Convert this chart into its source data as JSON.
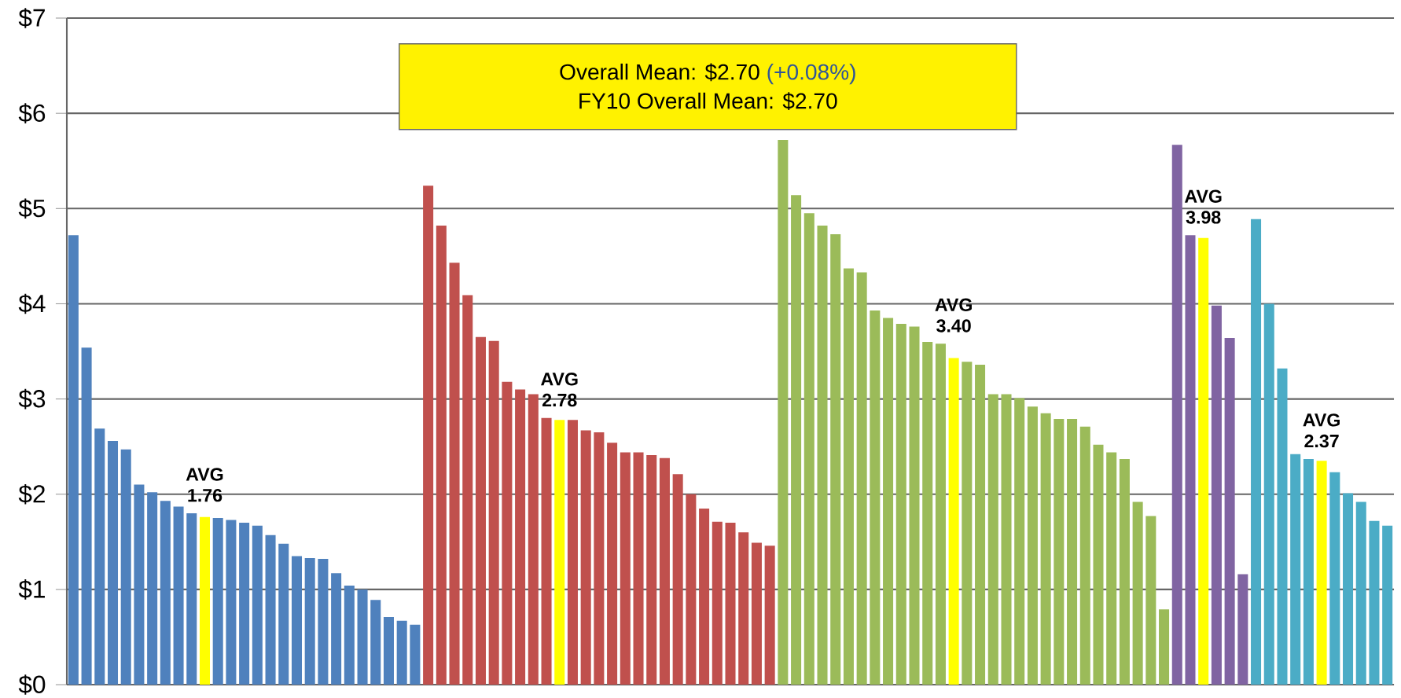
{
  "chart_data": {
    "type": "bar",
    "categories": [
      null,
      null,
      null,
      null,
      null,
      null,
      null,
      null,
      null,
      null,
      null,
      null,
      null,
      null,
      null,
      null,
      null,
      null,
      null,
      null,
      null,
      null,
      null,
      null,
      null,
      null,
      null,
      null,
      null,
      null,
      null,
      null,
      null,
      null,
      null,
      null,
      null,
      null,
      null,
      null,
      null,
      null,
      null,
      null,
      null,
      null,
      null,
      null,
      null,
      null,
      null,
      null,
      null,
      null,
      null,
      null,
      null,
      null,
      null,
      null,
      null,
      null,
      null,
      null,
      null,
      null,
      null,
      null,
      null,
      null,
      null,
      null,
      null,
      null,
      null,
      null,
      null,
      null,
      null,
      null,
      null,
      null,
      null,
      null,
      null,
      null,
      null,
      null,
      null,
      null,
      null,
      null,
      null,
      null,
      null,
      null,
      null,
      null,
      null,
      null,
      null
    ],
    "values": [
      4.72,
      3.54,
      2.69,
      2.56,
      2.47,
      2.1,
      2.02,
      1.93,
      1.87,
      1.8,
      1.76,
      1.75,
      1.73,
      1.7,
      1.67,
      1.57,
      1.48,
      1.35,
      1.33,
      1.32,
      1.17,
      1.04,
      1.0,
      0.89,
      0.71,
      0.67,
      0.63,
      5.24,
      4.82,
      4.43,
      4.09,
      3.65,
      3.61,
      3.18,
      3.1,
      3.05,
      2.8,
      2.78,
      2.78,
      2.67,
      2.65,
      2.54,
      2.44,
      2.44,
      2.41,
      2.38,
      2.21,
      2.0,
      1.85,
      1.71,
      1.7,
      1.6,
      1.49,
      1.46,
      5.72,
      5.14,
      4.95,
      4.82,
      4.73,
      4.37,
      4.33,
      3.93,
      3.85,
      3.79,
      3.76,
      3.6,
      3.58,
      3.43,
      3.39,
      3.36,
      3.05,
      3.05,
      3.01,
      2.92,
      2.85,
      2.79,
      2.79,
      2.71,
      2.52,
      2.44,
      2.37,
      1.92,
      1.77,
      0.79,
      5.67,
      4.72,
      4.69,
      3.98,
      3.64,
      1.16,
      4.89,
      4.0,
      3.32,
      2.42,
      2.37,
      2.35,
      2.23,
      2.01,
      1.92,
      1.72,
      1.67
    ],
    "colors": [
      "#4f81bd",
      "#4f81bd",
      "#4f81bd",
      "#4f81bd",
      "#4f81bd",
      "#4f81bd",
      "#4f81bd",
      "#4f81bd",
      "#4f81bd",
      "#4f81bd",
      "#ffff00",
      "#4f81bd",
      "#4f81bd",
      "#4f81bd",
      "#4f81bd",
      "#4f81bd",
      "#4f81bd",
      "#4f81bd",
      "#4f81bd",
      "#4f81bd",
      "#4f81bd",
      "#4f81bd",
      "#4f81bd",
      "#4f81bd",
      "#4f81bd",
      "#4f81bd",
      "#4f81bd",
      "#c0504d",
      "#c0504d",
      "#c0504d",
      "#c0504d",
      "#c0504d",
      "#c0504d",
      "#c0504d",
      "#c0504d",
      "#c0504d",
      "#c0504d",
      "#ffff00",
      "#c0504d",
      "#c0504d",
      "#c0504d",
      "#c0504d",
      "#c0504d",
      "#c0504d",
      "#c0504d",
      "#c0504d",
      "#c0504d",
      "#c0504d",
      "#c0504d",
      "#c0504d",
      "#c0504d",
      "#c0504d",
      "#c0504d",
      "#c0504d",
      "#9bbb59",
      "#9bbb59",
      "#9bbb59",
      "#9bbb59",
      "#9bbb59",
      "#9bbb59",
      "#9bbb59",
      "#9bbb59",
      "#9bbb59",
      "#9bbb59",
      "#9bbb59",
      "#9bbb59",
      "#9bbb59",
      "#ffff00",
      "#9bbb59",
      "#9bbb59",
      "#9bbb59",
      "#9bbb59",
      "#9bbb59",
      "#9bbb59",
      "#9bbb59",
      "#9bbb59",
      "#9bbb59",
      "#9bbb59",
      "#9bbb59",
      "#9bbb59",
      "#9bbb59",
      "#9bbb59",
      "#9bbb59",
      "#9bbb59",
      "#8064a2",
      "#8064a2",
      "#ffff00",
      "#8064a2",
      "#8064a2",
      "#8064a2",
      "#4bacc6",
      "#4bacc6",
      "#4bacc6",
      "#4bacc6",
      "#4bacc6",
      "#ffff00",
      "#4bacc6",
      "#4bacc6",
      "#4bacc6",
      "#4bacc6",
      "#4bacc6"
    ],
    "ylim": [
      0,
      7
    ],
    "yticks": [
      {
        "value": 0,
        "label": "$0"
      },
      {
        "value": 1,
        "label": "$1"
      },
      {
        "value": 2,
        "label": "$2"
      },
      {
        "value": 3,
        "label": "$3"
      },
      {
        "value": 4,
        "label": "$4"
      },
      {
        "value": 5,
        "label": "$5"
      },
      {
        "value": 6,
        "label": "$6"
      },
      {
        "value": 7,
        "label": "$7"
      }
    ],
    "grid": "y",
    "tick_labels": "y",
    "annotations": [
      "AVG 1.76",
      "AVG 2.78",
      "AVG 3.40",
      "AVG 3.98",
      "AVG 2.37",
      "Overall Mean: $2.70",
      "(+0.08%)",
      "FY10 Overall Mean: $2.70"
    ]
  }
}
